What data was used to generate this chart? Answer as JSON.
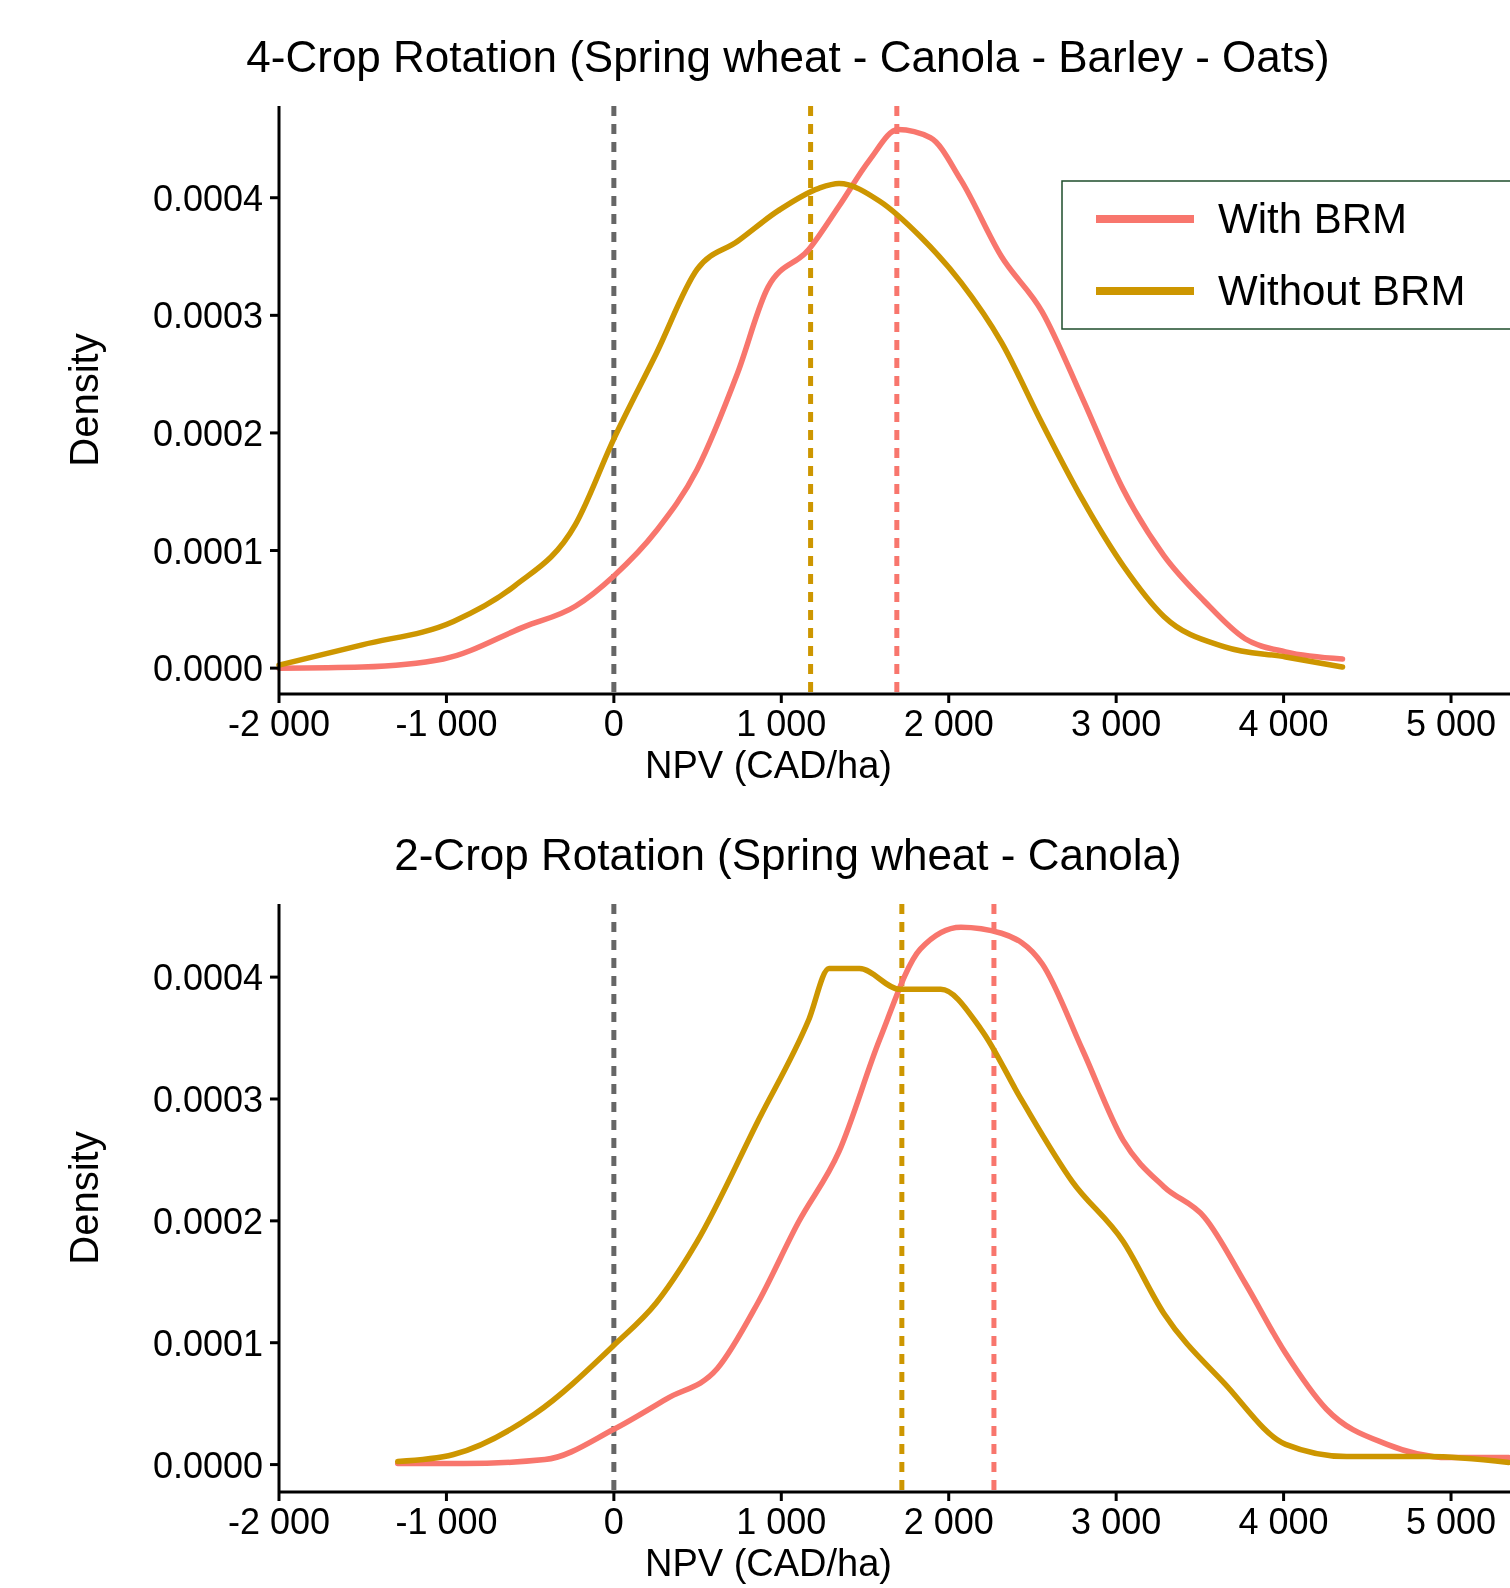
{
  "chart_data": [
    {
      "type": "line",
      "title": "4-Crop Rotation (Spring wheat - Canola - Barley - Oats)",
      "xlabel": "NPV (CAD/ha)",
      "ylabel": "Density",
      "xlim": [
        -2000,
        5400
      ],
      "ylim": [
        -2.2e-05,
        0.000478
      ],
      "xticks": [
        {
          "value": -2000,
          "label": "-2 000"
        },
        {
          "value": -1000,
          "label": "-1 000"
        },
        0,
        {
          "value": 1000,
          "label": "1 000"
        },
        {
          "value": 2000,
          "label": "2 000"
        },
        {
          "value": 3000,
          "label": "3 000"
        },
        {
          "value": 4000,
          "label": "4 000"
        },
        {
          "value": 5000,
          "label": "5 000"
        }
      ],
      "yticks": [
        {
          "value": 0,
          "label": "0.0000"
        },
        {
          "value": 0.0001,
          "label": "0.0001"
        },
        {
          "value": 0.0002,
          "label": "0.0002"
        },
        {
          "value": 0.0003,
          "label": "0.0003"
        },
        {
          "value": 0.0004,
          "label": "0.0004"
        }
      ],
      "grid": false,
      "legend": "top right",
      "line_style": "solid",
      "ref_lines": [
        {
          "axis": "x",
          "value": 0,
          "color": "#666666",
          "line_style": "dashed"
        },
        {
          "axis": "x",
          "value": 1175,
          "color": "#cd9600",
          "line_style": "dashed"
        },
        {
          "axis": "x",
          "value": 1690,
          "color": "#f8766d",
          "line_style": "dashed"
        }
      ],
      "series": [
        {
          "name": "With BRM",
          "color": "#f8766d",
          "x": [
            -2000,
            -1503,
            -1018,
            -533,
            -230,
            0,
            255,
            497,
            739,
            921,
            1164,
            1345,
            1527,
            1697,
            1891,
            2073,
            2315,
            2558,
            2800,
            3042,
            3285,
            3527,
            3770,
            4012,
            4352
          ],
          "values": [
            0,
            1e-06,
            7.8e-06,
            3.53e-05,
            5.26e-05,
            7.84e-05,
            0.000117,
            0.000169,
            0.000251,
            0.000324,
            0.000356,
            0.000393,
            0.000432,
            0.000458,
            0.000451,
            0.000415,
            0.00035,
            0.000303,
            0.000229,
            0.000152,
            9.57e-05,
            5.69e-05,
            2.5e-05,
            1.38e-05,
            7.8e-06
          ]
        },
        {
          "name": "Without BRM",
          "color": "#cd9600",
          "x": [
            -2000,
            -1503,
            -958,
            -594,
            -230,
            0,
            255,
            497,
            739,
            982,
            1224,
            1345,
            1588,
            1830,
            2073,
            2315,
            2558,
            2800,
            3042,
            3285,
            3648,
            4012,
            4352
          ],
          "values": [
            2.6e-06,
            1.98e-05,
            3.97e-05,
            6.98e-05,
            0.000122,
            0.000195,
            0.000268,
            0.000339,
            0.000363,
            0.000389,
            0.000408,
            0.000412,
            0.000397,
            0.000367,
            0.000328,
            0.000277,
            0.000208,
            0.000143,
            8.71e-05,
            4.4e-05,
            1.81e-05,
            9.5e-06,
            9e-07
          ]
        }
      ]
    },
    {
      "type": "line",
      "title": "2-Crop Rotation (Spring wheat - Canola)",
      "xlabel": "NPV (CAD/ha)",
      "ylabel": "Density",
      "xlim": [
        -2000,
        5400
      ],
      "ylim": [
        -2.25e-05,
        0.00046
      ],
      "xticks": [
        {
          "value": -2000,
          "label": "-2 000"
        },
        {
          "value": -1000,
          "label": "-1 000"
        },
        0,
        {
          "value": 1000,
          "label": "1 000"
        },
        {
          "value": 2000,
          "label": "2 000"
        },
        {
          "value": 3000,
          "label": "3 000"
        },
        {
          "value": 4000,
          "label": "4 000"
        },
        {
          "value": 5000,
          "label": "5 000"
        }
      ],
      "yticks": [
        {
          "value": 0,
          "label": "0.0000"
        },
        {
          "value": 0.0001,
          "label": "0.0001"
        },
        {
          "value": 0.0002,
          "label": "0.0002"
        },
        {
          "value": 0.0003,
          "label": "0.0003"
        },
        {
          "value": 0.0004,
          "label": "0.0004"
        }
      ],
      "grid": false,
      "legend": false,
      "line_style": "solid",
      "ref_lines": [
        {
          "axis": "x",
          "value": 0,
          "color": "#666666",
          "line_style": "dashed"
        },
        {
          "axis": "x",
          "value": 1720,
          "color": "#cd9600",
          "line_style": "dashed"
        },
        {
          "axis": "x",
          "value": 2270,
          "color": "#f8766d",
          "line_style": "dashed"
        }
      ],
      "series": [
        {
          "color": "#f8766d",
          "x": [
            -1291,
            -897,
            -412,
            0,
            315,
            618,
            861,
            1103,
            1345,
            1588,
            1830,
            2073,
            2315,
            2558,
            2800,
            3042,
            3285,
            3527,
            3770,
            4012,
            4255,
            4618,
            4982,
            5345
          ],
          "values": [
            8e-07,
            8e-07,
            4.1e-06,
            2.9e-05,
            5.4e-05,
            7.88e-05,
            0.000133,
            0.000199,
            0.000257,
            0.000349,
            0.000423,
            0.000441,
            0.000436,
            0.000411,
            0.00034,
            0.000266,
            0.000228,
            0.000203,
            0.000149,
            9.13e-05,
            4.56e-05,
            1.66e-05,
            5.8e-06,
            5.8e-06
          ]
        },
        {
          "color": "#cd9600",
          "x": [
            -1291,
            -958,
            -473,
            0,
            255,
            497,
            861,
            1164,
            1285,
            1467,
            1709,
            1952,
            2194,
            2436,
            2739,
            3042,
            3285,
            3648,
            4012,
            4376,
            4861,
            5345
          ],
          "values": [
            2.5e-06,
            8.3e-06,
            4.15e-05,
            9.79e-05,
            0.000133,
            0.000183,
            0.000282,
            0.000365,
            0.000407,
            0.000407,
            0.00039,
            0.00039,
            0.000357,
            0.000299,
            0.000232,
            0.000183,
            0.000124,
            6.64e-05,
            1.66e-05,
            6.6e-06,
            6.6e-06,
            1.7e-06
          ]
        }
      ]
    }
  ]
}
